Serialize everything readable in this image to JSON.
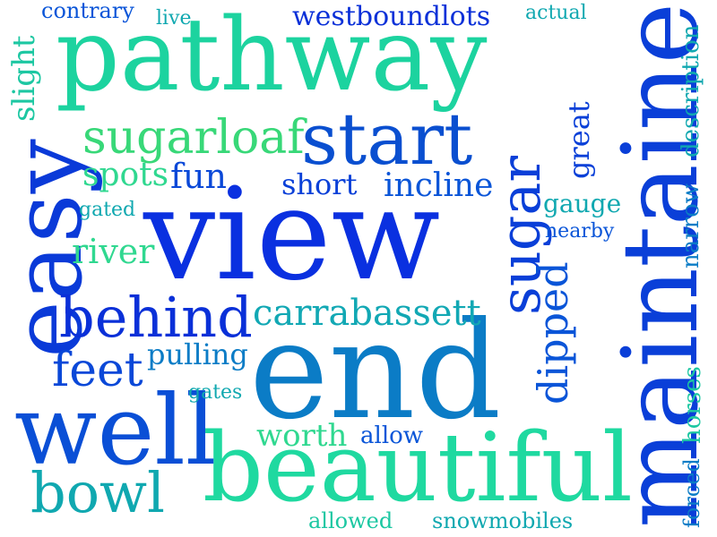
{
  "colors": {
    "background": "#ffffff",
    "palette": [
      "#0033dd",
      "#0a55d8",
      "#0b7cc6",
      "#10a8b0",
      "#1cc7a2",
      "#14e09a"
    ]
  },
  "words": [
    {
      "id": "pathway",
      "text": "pathway",
      "color": "#1cd39f"
    },
    {
      "id": "view",
      "text": "view",
      "color": "#0a30e0"
    },
    {
      "id": "end",
      "text": "end",
      "color": "#0b7cc6"
    },
    {
      "id": "maintained",
      "text": "maintained",
      "color": "#0a3fd8"
    },
    {
      "id": "beautiful",
      "text": "beautiful",
      "color": "#1fd9a0"
    },
    {
      "id": "well",
      "text": "well",
      "color": "#0a4fd6"
    },
    {
      "id": "easy",
      "text": "easy",
      "color": "#0a3ad8"
    },
    {
      "id": "start",
      "text": "start",
      "color": "#0a4fd0"
    },
    {
      "id": "behind",
      "text": "behind",
      "color": "#0a30d8"
    },
    {
      "id": "sugarloaf",
      "text": "sugarloaf",
      "color": "#38d878"
    },
    {
      "id": "sugar",
      "text": "sugar",
      "color": "#0a3fd8"
    },
    {
      "id": "bowl",
      "text": "bowl",
      "color": "#10a8b0"
    },
    {
      "id": "carrabassett",
      "text": "carrabassett",
      "color": "#12a8b4"
    },
    {
      "id": "feet",
      "text": "feet",
      "color": "#0a48d8"
    },
    {
      "id": "dipped",
      "text": "dipped",
      "color": "#0a55d8"
    },
    {
      "id": "westboundlots",
      "text": "westboundlots",
      "color": "#0a30d8"
    },
    {
      "id": "incline",
      "text": "incline",
      "color": "#0a55d8"
    },
    {
      "id": "fun",
      "text": "fun",
      "color": "#0a48d8"
    },
    {
      "id": "spots",
      "text": "spots",
      "color": "#30d890"
    },
    {
      "id": "short",
      "text": "short",
      "color": "#0a40d8"
    },
    {
      "id": "river",
      "text": "river",
      "color": "#30d890"
    },
    {
      "id": "slight",
      "text": "slight",
      "color": "#1cc7a2"
    },
    {
      "id": "pulling",
      "text": "pulling",
      "color": "#0b7cc6"
    },
    {
      "id": "worth",
      "text": "worth",
      "color": "#30d890"
    },
    {
      "id": "great",
      "text": "great",
      "color": "#0a40d8"
    },
    {
      "id": "description",
      "text": "description",
      "color": "#10a8b0"
    },
    {
      "id": "narrow",
      "text": "narrow",
      "color": "#0b7cc6"
    },
    {
      "id": "horses",
      "text": "horses",
      "color": "#1cc7a2"
    },
    {
      "id": "forced",
      "text": "forced",
      "color": "#0b7cc6"
    },
    {
      "id": "gauge",
      "text": "gauge",
      "color": "#10a8b0"
    },
    {
      "id": "nearby",
      "text": "nearby",
      "color": "#0a55d8"
    },
    {
      "id": "contrary",
      "text": "contrary",
      "color": "#0a55d8"
    },
    {
      "id": "live",
      "text": "live",
      "color": "#10a8b0"
    },
    {
      "id": "actual",
      "text": "actual",
      "color": "#10a8b0"
    },
    {
      "id": "gated",
      "text": "gated",
      "color": "#10a8b0"
    },
    {
      "id": "gates",
      "text": "gates",
      "color": "#10a8b0"
    },
    {
      "id": "allow",
      "text": "allow",
      "color": "#0a55d8"
    },
    {
      "id": "allowed",
      "text": "allowed",
      "color": "#1cc7a2"
    },
    {
      "id": "snowmobiles",
      "text": "snowmobiles",
      "color": "#10a8b0"
    }
  ]
}
